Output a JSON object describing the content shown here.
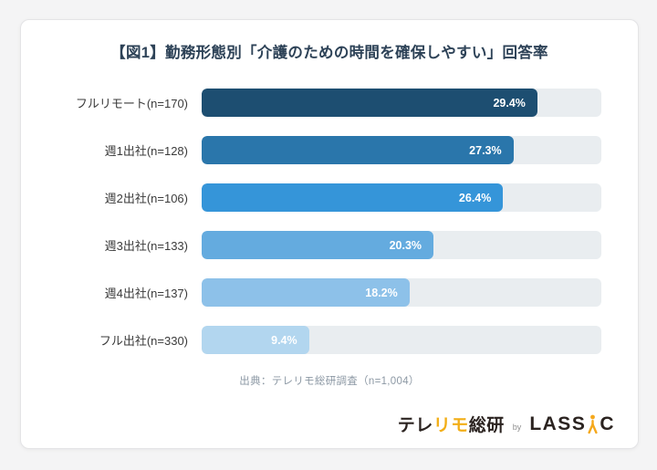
{
  "title": "【図1】勤務形態別「介護のための時間を確保しやすい」回答率",
  "chart_data": {
    "type": "bar",
    "orientation": "horizontal",
    "title": "【図1】勤務形態別「介護のための時間を確保しやすい」回答率",
    "categories": [
      "フルリモート(n=170)",
      "週1出社(n=128)",
      "週2出社(n=106)",
      "週3出社(n=133)",
      "週4出社(n=137)",
      "フル出社(n=330)"
    ],
    "values": [
      29.4,
      27.3,
      26.4,
      20.3,
      18.2,
      9.4
    ],
    "value_labels": [
      "29.4%",
      "27.3%",
      "26.4%",
      "20.3%",
      "18.2%",
      "9.4%"
    ],
    "bar_colors": [
      "#1d4e71",
      "#2a76ab",
      "#3595d9",
      "#64abdf",
      "#8dc1e9",
      "#b2d6ef"
    ],
    "track_color": "#e9edf0",
    "xlim": [
      0,
      35
    ],
    "grid": false,
    "legend": false,
    "value_label_position": "inside-end"
  },
  "source": "出典：テレリモ総研調査（n=1,004）",
  "footer": {
    "brand_prefix": "テレ",
    "brand_accent": "リモ",
    "brand_suffix": "総研",
    "by_label": "by",
    "lassic_left": "LASS",
    "lassic_right": "C",
    "accent_color": "#f2ae17",
    "person_icon_color": "#f5a81c",
    "brand_dark_color": "#2b2320"
  }
}
